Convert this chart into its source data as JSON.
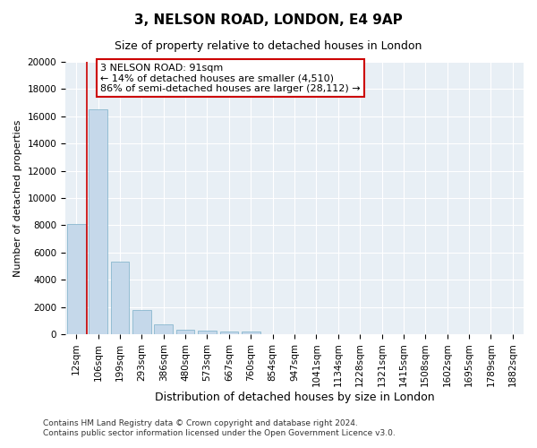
{
  "title": "3, NELSON ROAD, LONDON, E4 9AP",
  "subtitle": "Size of property relative to detached houses in London",
  "xlabel": "Distribution of detached houses by size in London",
  "ylabel": "Number of detached properties",
  "categories": [
    "12sqm",
    "106sqm",
    "199sqm",
    "293sqm",
    "386sqm",
    "480sqm",
    "573sqm",
    "667sqm",
    "760sqm",
    "854sqm",
    "947sqm",
    "1041sqm",
    "1134sqm",
    "1228sqm",
    "1321sqm",
    "1415sqm",
    "1508sqm",
    "1602sqm",
    "1695sqm",
    "1789sqm",
    "1882sqm"
  ],
  "values": [
    8100,
    16500,
    5300,
    1750,
    700,
    350,
    270,
    220,
    175,
    0,
    0,
    0,
    0,
    0,
    0,
    0,
    0,
    0,
    0,
    0,
    0
  ],
  "bar_color": "#c5d8ea",
  "bar_edgecolor": "#7aaec8",
  "vline_x": 0.5,
  "vline_color": "#cc0000",
  "annotation_text": "3 NELSON ROAD: 91sqm\n← 14% of detached houses are smaller (4,510)\n86% of semi-detached houses are larger (28,112) →",
  "annotation_box_facecolor": "#ffffff",
  "annotation_box_edgecolor": "#cc0000",
  "ylim": [
    0,
    20000
  ],
  "yticks": [
    0,
    2000,
    4000,
    6000,
    8000,
    10000,
    12000,
    14000,
    16000,
    18000,
    20000
  ],
  "footer_line1": "Contains HM Land Registry data © Crown copyright and database right 2024.",
  "footer_line2": "Contains public sector information licensed under the Open Government Licence v3.0.",
  "plot_bg_color": "#e8eff5",
  "fig_bg_color": "#ffffff",
  "grid_color": "#ffffff",
  "title_fontsize": 11,
  "subtitle_fontsize": 9,
  "xlabel_fontsize": 9,
  "ylabel_fontsize": 8,
  "tick_fontsize": 7.5,
  "footer_fontsize": 6.5,
  "ann_fontsize": 8
}
